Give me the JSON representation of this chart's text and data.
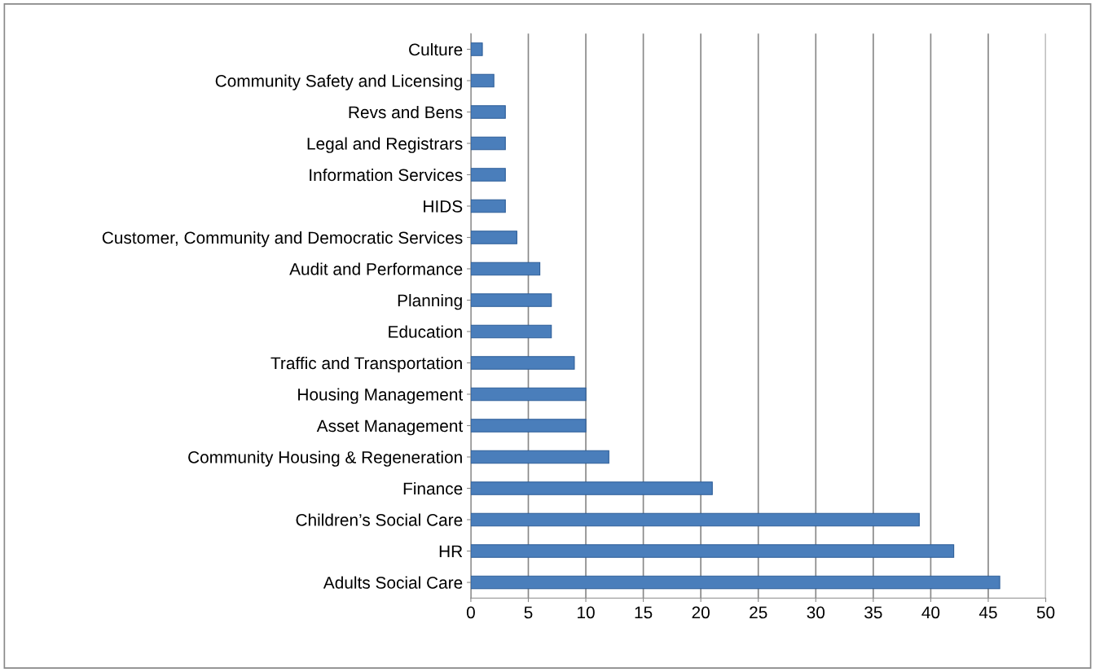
{
  "chart_data": {
    "type": "bar",
    "orientation": "horizontal",
    "categories": [
      "Culture",
      "Community Safety and Licensing",
      "Revs and Bens",
      "Legal and Registrars",
      "Information Services",
      "HIDS",
      "Customer, Community and Democratic Services",
      "Audit and Performance",
      "Planning",
      "Education",
      "Traffic and Transportation",
      "Housing Management",
      "Asset Management",
      "Community Housing & Regeneration",
      "Finance",
      "Children’s Social Care",
      "HR",
      "Adults Social Care"
    ],
    "values": [
      1,
      2,
      3,
      3,
      3,
      3,
      4,
      6,
      7,
      7,
      9,
      10,
      10,
      12,
      21,
      39,
      42,
      46
    ],
    "color": "#4a7ebb",
    "xlim": [
      0,
      50
    ],
    "xticks": [
      0,
      5,
      10,
      15,
      20,
      25,
      30,
      35,
      40,
      45,
      50
    ],
    "grid": "x"
  }
}
